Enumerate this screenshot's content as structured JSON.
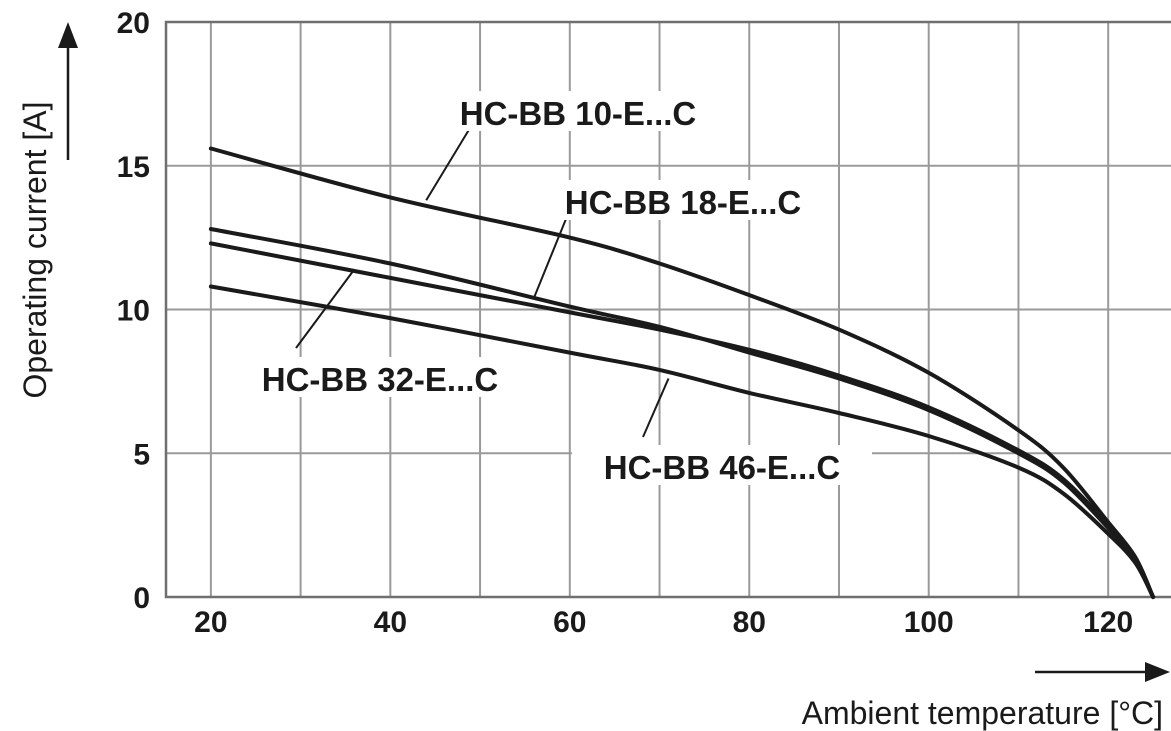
{
  "chart_data": {
    "type": "line",
    "title": "",
    "xlabel": "Ambient temperature [°C]",
    "ylabel": "Operating current [A]",
    "xlim": [
      15,
      127
    ],
    "ylim": [
      0,
      20
    ],
    "x_ticks": [
      20,
      40,
      60,
      80,
      100,
      120
    ],
    "y_ticks": [
      0,
      5,
      10,
      15,
      20
    ],
    "grid": true,
    "x_grid_step": 10,
    "y_grid_step": 5,
    "legend": "none",
    "series": [
      {
        "name": "HC-BB 10-E...C",
        "x": [
          20,
          40,
          60,
          70,
          80,
          90,
          100,
          110,
          115,
          120,
          123,
          125
        ],
        "y": [
          15.6,
          13.9,
          12.5,
          11.6,
          10.5,
          9.3,
          7.8,
          5.8,
          4.5,
          2.6,
          1.4,
          0
        ]
      },
      {
        "name": "HC-BB 18-E...C",
        "x": [
          20,
          40,
          60,
          70,
          80,
          90,
          100,
          110,
          115,
          120,
          123,
          125
        ],
        "y": [
          12.8,
          11.6,
          10.1,
          9.4,
          8.5,
          7.6,
          6.5,
          5.0,
          4.0,
          2.4,
          1.3,
          0
        ]
      },
      {
        "name": "HC-BB 32-E...C",
        "x": [
          20,
          40,
          60,
          70,
          80,
          90,
          100,
          110,
          115,
          120,
          123,
          125
        ],
        "y": [
          12.3,
          11.1,
          9.9,
          9.3,
          8.6,
          7.7,
          6.6,
          5.1,
          4.1,
          2.5,
          1.3,
          0
        ]
      },
      {
        "name": "HC-BB 46-E...C",
        "x": [
          20,
          40,
          60,
          70,
          80,
          90,
          100,
          110,
          115,
          120,
          123,
          125
        ],
        "y": [
          10.8,
          9.7,
          8.5,
          7.9,
          7.1,
          6.4,
          5.6,
          4.5,
          3.6,
          2.2,
          1.2,
          0
        ]
      }
    ],
    "annotations": [
      {
        "series": 0,
        "text": "HC-BB 10-E...C",
        "point_x": 44,
        "point_y": 13.8
      },
      {
        "series": 1,
        "text": "HC-BB 18-E...C",
        "point_x": 56,
        "point_y": 10.4
      },
      {
        "series": 2,
        "text": "HC-BB 32-E...C",
        "point_x": 36,
        "point_y": 11.4
      },
      {
        "series": 3,
        "text": "HC-BB 46-E...C",
        "point_x": 71,
        "point_y": 7.6
      }
    ],
    "colors": {
      "line": "#1a1a1a",
      "grid": "#9a9a9a"
    }
  }
}
